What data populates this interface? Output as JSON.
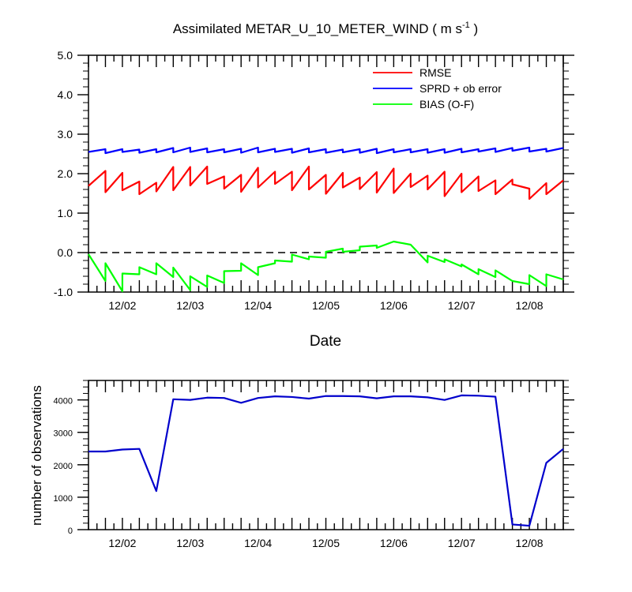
{
  "chart_data": [
    {
      "type": "line",
      "title": "Assimilated METAR_U_10_METER_WIND ( m s",
      "title_sup": "-1",
      "title_end": " )",
      "xlabel": "Date",
      "ylabel": "",
      "ylim": [
        -1.0,
        5.0
      ],
      "yticks": [
        "-1.0",
        "0.0",
        "1.0",
        "2.0",
        "3.0",
        "4.0",
        "5.0"
      ],
      "xticks": [
        "12/02",
        "12/03",
        "12/04",
        "12/05",
        "12/06",
        "12/07",
        "12/08"
      ],
      "xlim": [
        1.5,
        8.5
      ],
      "zero_line": "dashed",
      "legend": {
        "placement": "top-right"
      },
      "series": [
        {
          "name": "RMSE",
          "color": "#ff0000",
          "points": [
            [
              1.5,
              1.69
            ],
            [
              1.75,
              2.07
            ],
            [
              1.75,
              1.53
            ],
            [
              2.0,
              2.02
            ],
            [
              2.0,
              1.58
            ],
            [
              2.25,
              1.8
            ],
            [
              2.25,
              1.48
            ],
            [
              2.5,
              1.77
            ],
            [
              2.5,
              1.55
            ],
            [
              2.75,
              2.17
            ],
            [
              2.75,
              1.58
            ],
            [
              3.0,
              2.17
            ],
            [
              3.0,
              1.7
            ],
            [
              3.25,
              2.18
            ],
            [
              3.25,
              1.74
            ],
            [
              3.5,
              1.93
            ],
            [
              3.5,
              1.62
            ],
            [
              3.75,
              1.97
            ],
            [
              3.75,
              1.54
            ],
            [
              4.0,
              2.15
            ],
            [
              4.0,
              1.65
            ],
            [
              4.25,
              2.05
            ],
            [
              4.25,
              1.74
            ],
            [
              4.5,
              2.05
            ],
            [
              4.5,
              1.58
            ],
            [
              4.75,
              2.18
            ],
            [
              4.75,
              1.6
            ],
            [
              5.0,
              1.97
            ],
            [
              5.0,
              1.49
            ],
            [
              5.25,
              2.02
            ],
            [
              5.25,
              1.65
            ],
            [
              5.5,
              1.9
            ],
            [
              5.5,
              1.61
            ],
            [
              5.75,
              2.04
            ],
            [
              5.75,
              1.52
            ],
            [
              6.0,
              2.13
            ],
            [
              6.0,
              1.51
            ],
            [
              6.25,
              2.0
            ],
            [
              6.25,
              1.66
            ],
            [
              6.5,
              1.95
            ],
            [
              6.5,
              1.6
            ],
            [
              6.75,
              2.05
            ],
            [
              6.75,
              1.43
            ],
            [
              7.0,
              2.0
            ],
            [
              7.0,
              1.53
            ],
            [
              7.25,
              1.93
            ],
            [
              7.25,
              1.56
            ],
            [
              7.5,
              1.83
            ],
            [
              7.5,
              1.48
            ],
            [
              7.75,
              1.85
            ],
            [
              7.75,
              1.73
            ],
            [
              8.0,
              1.62
            ],
            [
              8.0,
              1.36
            ],
            [
              8.25,
              1.76
            ],
            [
              8.25,
              1.48
            ],
            [
              8.5,
              1.83
            ]
          ]
        },
        {
          "name": "SPRD + ob error",
          "color": "#0000ff",
          "points": [
            [
              1.5,
              2.55
            ],
            [
              1.75,
              2.62
            ],
            [
              1.75,
              2.52
            ],
            [
              2.0,
              2.62
            ],
            [
              2.0,
              2.55
            ],
            [
              2.25,
              2.61
            ],
            [
              2.25,
              2.53
            ],
            [
              2.5,
              2.62
            ],
            [
              2.5,
              2.54
            ],
            [
              2.75,
              2.65
            ],
            [
              2.75,
              2.54
            ],
            [
              3.0,
              2.66
            ],
            [
              3.0,
              2.55
            ],
            [
              3.25,
              2.64
            ],
            [
              3.25,
              2.54
            ],
            [
              3.5,
              2.62
            ],
            [
              3.5,
              2.54
            ],
            [
              3.75,
              2.63
            ],
            [
              3.75,
              2.53
            ],
            [
              4.0,
              2.66
            ],
            [
              4.0,
              2.54
            ],
            [
              4.25,
              2.63
            ],
            [
              4.25,
              2.55
            ],
            [
              4.5,
              2.63
            ],
            [
              4.5,
              2.53
            ],
            [
              4.75,
              2.64
            ],
            [
              4.75,
              2.54
            ],
            [
              5.0,
              2.62
            ],
            [
              5.0,
              2.53
            ],
            [
              5.25,
              2.61
            ],
            [
              5.25,
              2.54
            ],
            [
              5.5,
              2.62
            ],
            [
              5.5,
              2.53
            ],
            [
              5.75,
              2.63
            ],
            [
              5.75,
              2.52
            ],
            [
              6.0,
              2.62
            ],
            [
              6.0,
              2.54
            ],
            [
              6.25,
              2.62
            ],
            [
              6.25,
              2.54
            ],
            [
              6.5,
              2.62
            ],
            [
              6.5,
              2.53
            ],
            [
              6.75,
              2.62
            ],
            [
              6.75,
              2.53
            ],
            [
              7.0,
              2.63
            ],
            [
              7.0,
              2.54
            ],
            [
              7.25,
              2.62
            ],
            [
              7.25,
              2.56
            ],
            [
              7.5,
              2.64
            ],
            [
              7.5,
              2.55
            ],
            [
              7.75,
              2.65
            ],
            [
              7.75,
              2.58
            ],
            [
              8.0,
              2.66
            ],
            [
              8.0,
              2.56
            ],
            [
              8.25,
              2.63
            ],
            [
              8.25,
              2.56
            ],
            [
              8.5,
              2.65
            ]
          ]
        },
        {
          "name": "BIAS (O-F)",
          "color": "#00ff00",
          "points": [
            [
              1.5,
              -0.04
            ],
            [
              1.75,
              -0.72
            ],
            [
              1.75,
              -0.27
            ],
            [
              2.0,
              -0.98
            ],
            [
              2.0,
              -0.53
            ],
            [
              2.25,
              -0.55
            ],
            [
              2.25,
              -0.37
            ],
            [
              2.5,
              -0.55
            ],
            [
              2.5,
              -0.27
            ],
            [
              2.75,
              -0.62
            ],
            [
              2.75,
              -0.38
            ],
            [
              3.0,
              -0.95
            ],
            [
              3.0,
              -0.6
            ],
            [
              3.25,
              -0.87
            ],
            [
              3.25,
              -0.58
            ],
            [
              3.5,
              -0.77
            ],
            [
              3.5,
              -0.47
            ],
            [
              3.75,
              -0.46
            ],
            [
              3.75,
              -0.27
            ],
            [
              4.0,
              -0.57
            ],
            [
              4.0,
              -0.37
            ],
            [
              4.25,
              -0.27
            ],
            [
              4.25,
              -0.2
            ],
            [
              4.5,
              -0.23
            ],
            [
              4.5,
              -0.05
            ],
            [
              4.75,
              -0.17
            ],
            [
              4.75,
              -0.1
            ],
            [
              5.0,
              -0.13
            ],
            [
              5.0,
              0.02
            ],
            [
              5.25,
              0.1
            ],
            [
              5.25,
              0.02
            ],
            [
              5.5,
              0.06
            ],
            [
              5.5,
              0.15
            ],
            [
              5.75,
              0.18
            ],
            [
              5.75,
              0.12
            ],
            [
              6.0,
              0.28
            ],
            [
              6.25,
              0.2
            ],
            [
              6.5,
              -0.25
            ],
            [
              6.5,
              -0.08
            ],
            [
              6.75,
              -0.24
            ],
            [
              6.75,
              -0.17
            ],
            [
              7.0,
              -0.35
            ],
            [
              7.0,
              -0.3
            ],
            [
              7.25,
              -0.55
            ],
            [
              7.25,
              -0.42
            ],
            [
              7.5,
              -0.62
            ],
            [
              7.5,
              -0.45
            ],
            [
              7.75,
              -0.72
            ],
            [
              8.0,
              -0.8
            ],
            [
              8.0,
              -0.57
            ],
            [
              8.25,
              -0.85
            ],
            [
              8.25,
              -0.55
            ],
            [
              8.5,
              -0.68
            ]
          ]
        }
      ]
    },
    {
      "type": "line",
      "title": "",
      "xlabel": "",
      "ylabel": "number of observations",
      "ylim": [
        0,
        4600
      ],
      "yticks": [
        "0",
        "1000",
        "2000",
        "3000",
        "4000"
      ],
      "xticks": [
        "12/02",
        "12/03",
        "12/04",
        "12/05",
        "12/06",
        "12/07",
        "12/08"
      ],
      "xlim": [
        1.5,
        8.5
      ],
      "series": [
        {
          "color": "#0000cc",
          "points": [
            [
              1.5,
              2410
            ],
            [
              1.75,
              2410
            ],
            [
              2.0,
              2470
            ],
            [
              2.25,
              2490
            ],
            [
              2.5,
              1190
            ],
            [
              2.75,
              4020
            ],
            [
              3.0,
              4000
            ],
            [
              3.25,
              4070
            ],
            [
              3.5,
              4060
            ],
            [
              3.75,
              3910
            ],
            [
              4.0,
              4060
            ],
            [
              4.25,
              4110
            ],
            [
              4.5,
              4090
            ],
            [
              4.75,
              4040
            ],
            [
              5.0,
              4120
            ],
            [
              5.25,
              4120
            ],
            [
              5.5,
              4110
            ],
            [
              5.75,
              4050
            ],
            [
              6.0,
              4110
            ],
            [
              6.25,
              4110
            ],
            [
              6.5,
              4080
            ],
            [
              6.75,
              4000
            ],
            [
              7.0,
              4140
            ],
            [
              7.25,
              4130
            ],
            [
              7.5,
              4100
            ],
            [
              7.75,
              160
            ],
            [
              8.0,
              120
            ],
            [
              8.25,
              2060
            ],
            [
              8.5,
              2490
            ]
          ]
        }
      ]
    }
  ]
}
